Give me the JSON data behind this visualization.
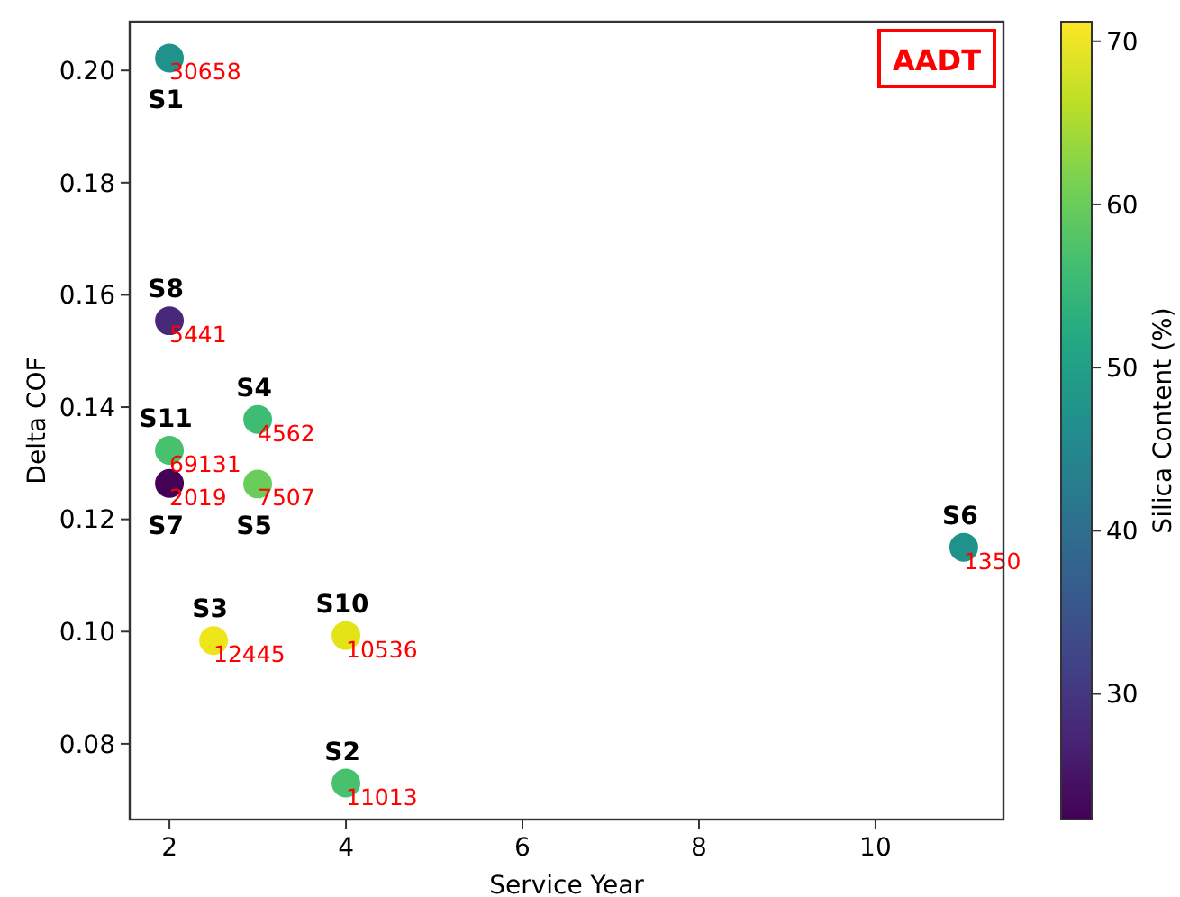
{
  "chart_data": {
    "type": "scatter",
    "xlabel": "Service Year",
    "ylabel": "Delta COF",
    "clabel": "Silica Content (%)",
    "x": [
      2,
      4,
      2.5,
      3,
      3,
      11,
      2,
      2,
      4,
      2
    ],
    "values": [
      0.2022,
      0.073,
      0.0984,
      0.1378,
      0.1263,
      0.115,
      0.1264,
      0.1554,
      0.0993,
      0.1323
    ],
    "cvalues": [
      47,
      57,
      70,
      56,
      60,
      47,
      22.5,
      28,
      69,
      57
    ],
    "xlim": [
      1.55,
      11.45
    ],
    "ylim": [
      0.0665,
      0.2087
    ],
    "xticks": [
      2,
      4,
      6,
      8,
      10
    ],
    "yticks": [
      {
        "value": 0.08,
        "label": "0.08"
      },
      {
        "value": 0.1,
        "label": "0.10"
      },
      {
        "value": 0.12,
        "label": "0.12"
      },
      {
        "value": 0.14,
        "label": "0.14"
      },
      {
        "value": 0.16,
        "label": "0.16"
      },
      {
        "value": 0.18,
        "label": "0.18"
      },
      {
        "value": 0.2,
        "label": "0.20"
      }
    ],
    "clim": [
      22.3,
      71.2
    ],
    "cticks": [
      30,
      40,
      50,
      60,
      70
    ],
    "marker": "circle",
    "grid": false,
    "annotations": [
      {
        "text": "S1",
        "x": 2,
        "y": 0.2022
      },
      {
        "text": "30658",
        "x": 2,
        "y": 0.2022
      },
      {
        "text": "S2",
        "x": 4,
        "y": 0.073
      },
      {
        "text": "11013",
        "x": 4,
        "y": 0.073
      },
      {
        "text": "S3",
        "x": 2.5,
        "y": 0.0984
      },
      {
        "text": "12445",
        "x": 2.5,
        "y": 0.0984
      },
      {
        "text": "S4",
        "x": 3,
        "y": 0.1378
      },
      {
        "text": "4562",
        "x": 3,
        "y": 0.1378
      },
      {
        "text": "S5",
        "x": 3,
        "y": 0.1263
      },
      {
        "text": "7507",
        "x": 3,
        "y": 0.1263
      },
      {
        "text": "S6",
        "x": 11,
        "y": 0.115
      },
      {
        "text": "1350",
        "x": 11,
        "y": 0.115
      },
      {
        "text": "S7",
        "x": 2,
        "y": 0.1264
      },
      {
        "text": "2019",
        "x": 2,
        "y": 0.1264
      },
      {
        "text": "S8",
        "x": 2,
        "y": 0.1554
      },
      {
        "text": "5441",
        "x": 2,
        "y": 0.1554
      },
      {
        "text": "S10",
        "x": 4,
        "y": 0.0993
      },
      {
        "text": "10536",
        "x": 4,
        "y": 0.0993
      },
      {
        "text": "S11",
        "x": 2,
        "y": 0.1323
      },
      {
        "text": "69131",
        "x": 2,
        "y": 0.1323
      },
      "AADT"
    ]
  }
}
